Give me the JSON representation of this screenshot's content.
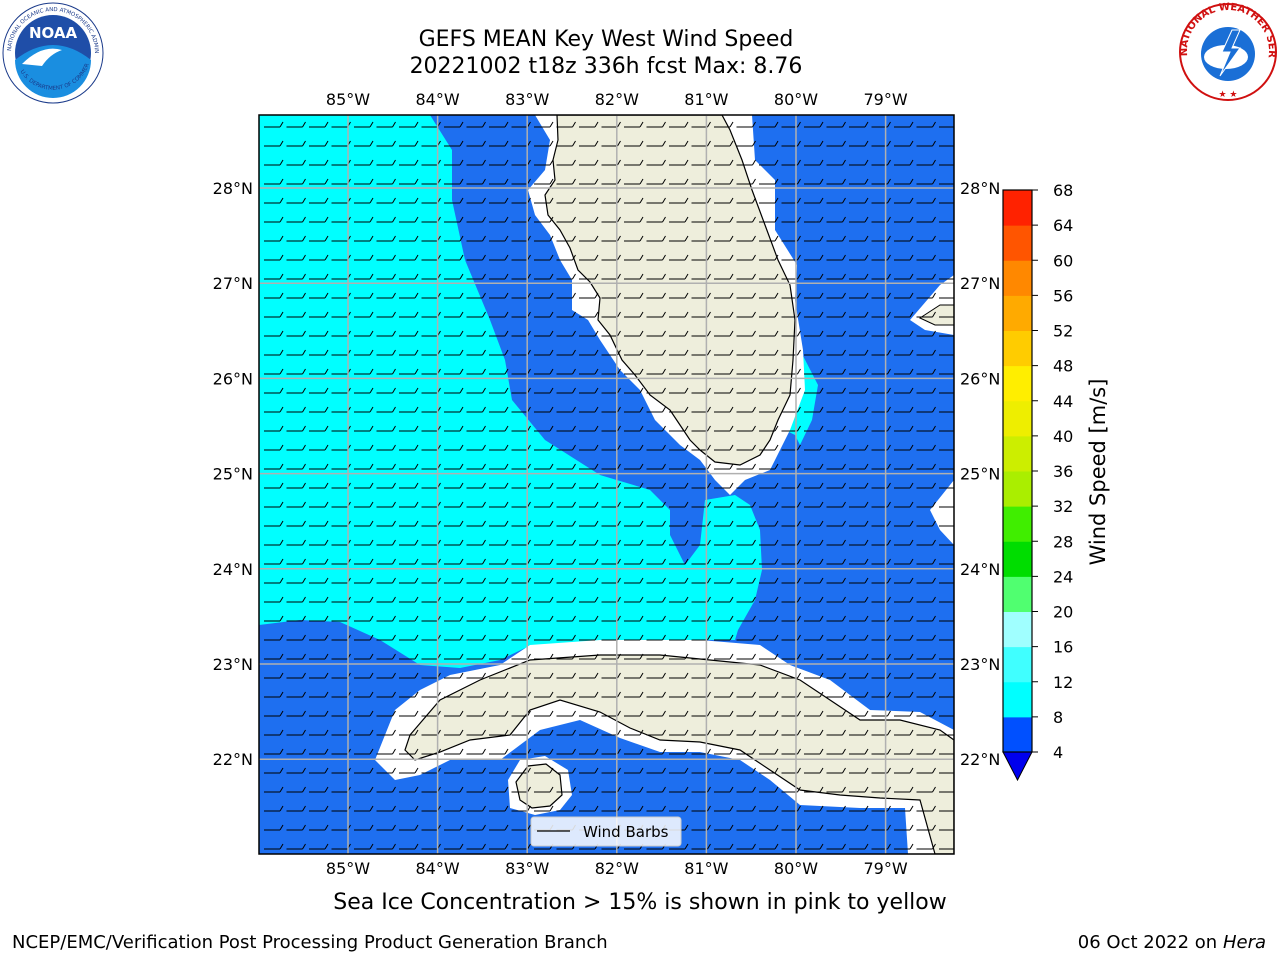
{
  "header": {
    "title_line1": "GEFS MEAN Key West Wind Speed",
    "title_line2": "20221002 t18z 336h fcst   Max: 8.76"
  },
  "map": {
    "lon_labels": [
      "85°W",
      "84°W",
      "83°W",
      "82°W",
      "81°W",
      "80°W",
      "79°W"
    ],
    "lat_labels": [
      "28°N",
      "27°N",
      "26°N",
      "25°N",
      "24°N",
      "23°N",
      "22°N"
    ],
    "legend_label": "Wind Barbs",
    "colors": {
      "ocean_low": "#1e6ff0",
      "ocean_mid": "#00ffff",
      "land": "#eeeedc",
      "grid": "#b0b0b0"
    }
  },
  "colorbar": {
    "title": "Wind Speed [m/s]",
    "ticks": [
      "4",
      "8",
      "12",
      "16",
      "20",
      "24",
      "28",
      "32",
      "36",
      "40",
      "44",
      "48",
      "52",
      "56",
      "60",
      "64",
      "68"
    ],
    "colors": [
      "#0050ff",
      "#00ffff",
      "#40ffff",
      "#a0ffff",
      "#50ff70",
      "#00dd00",
      "#40ee00",
      "#aaee00",
      "#ccee00",
      "#eeee00",
      "#ffee00",
      "#ffcc00",
      "#ffaa00",
      "#ff8800",
      "#ff5500",
      "#ff2200"
    ]
  },
  "logos": {
    "noaa_text": "NOAA",
    "noaa_ring": "NATIONAL OCEANIC AND ATMOSPHERIC ADMINISTRATION",
    "noaa_ring_bottom": "U.S. DEPARTMENT OF COMMERCE",
    "nws_text": "NATIONAL WEATHER SERVICE"
  },
  "caption": "Sea Ice Concentration > 15% is shown in pink to yellow",
  "footer": {
    "left": "NCEP/EMC/Verification Post Processing Product Generation Branch",
    "right_date": "06 Oct 2022 on ",
    "right_host": "Hera"
  }
}
